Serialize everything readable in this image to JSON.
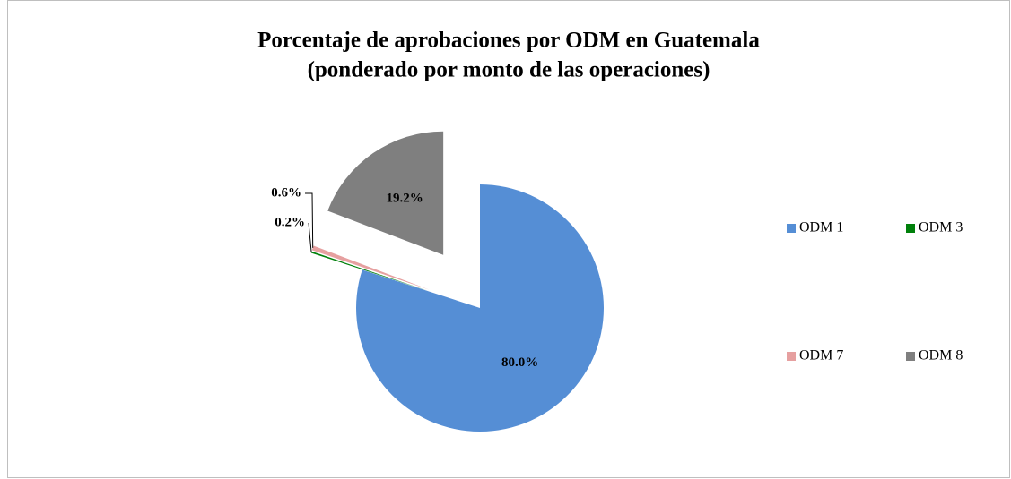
{
  "chart_data": {
    "type": "pie",
    "title": [
      "Porcentaje de aprobaciones por ODM en Guatemala",
      "(ponderado por monto de las operaciones)"
    ],
    "categories": [
      "ODM 1",
      "ODM 3",
      "ODM 7",
      "ODM 8"
    ],
    "values": [
      80,
      0.2,
      0.6,
      19.2
    ],
    "value_labels": [
      "80.0%",
      "0.2%",
      "0.6%",
      "19.2%"
    ],
    "colors": [
      "#558ed5",
      "#00800b",
      "#e6a0a0",
      "#7f7f7f"
    ],
    "legend": "right"
  }
}
